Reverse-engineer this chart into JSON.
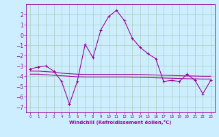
{
  "xlabel": "Windchill (Refroidissement éolien,°C)",
  "background_color": "#cceeff",
  "grid_color": "#aaccbb",
  "line_color": "#990099",
  "hours": [
    0,
    1,
    2,
    3,
    4,
    5,
    6,
    7,
    8,
    9,
    10,
    11,
    12,
    13,
    14,
    15,
    16,
    17,
    18,
    19,
    20,
    21,
    22,
    23
  ],
  "windchill": [
    -3.3,
    -3.1,
    -3.0,
    -3.5,
    -4.5,
    -6.7,
    -4.5,
    -0.9,
    -2.2,
    0.5,
    1.8,
    2.4,
    1.4,
    -0.3,
    -1.2,
    -1.8,
    -2.3,
    -4.5,
    -4.4,
    -4.5,
    -3.8,
    -4.4,
    -5.7,
    -4.4
  ],
  "smooth_line": [
    -3.5,
    -3.5,
    -3.55,
    -3.6,
    -3.7,
    -3.75,
    -3.8,
    -3.82,
    -3.82,
    -3.82,
    -3.82,
    -3.82,
    -3.82,
    -3.82,
    -3.83,
    -3.85,
    -3.88,
    -3.9,
    -3.92,
    -3.95,
    -3.97,
    -3.98,
    -4.0,
    -4.0
  ],
  "smooth_line2": [
    -3.8,
    -3.8,
    -3.85,
    -3.9,
    -3.95,
    -4.0,
    -4.05,
    -4.07,
    -4.07,
    -4.07,
    -4.07,
    -4.07,
    -4.07,
    -4.08,
    -4.1,
    -4.12,
    -4.15,
    -4.17,
    -4.19,
    -4.22,
    -4.24,
    -4.25,
    -4.27,
    -4.27
  ],
  "ylim": [
    -7.5,
    3.0
  ],
  "yticks": [
    -7,
    -6,
    -5,
    -4,
    -3,
    -2,
    -1,
    0,
    1,
    2
  ],
  "xlim": [
    -0.5,
    23.5
  ]
}
